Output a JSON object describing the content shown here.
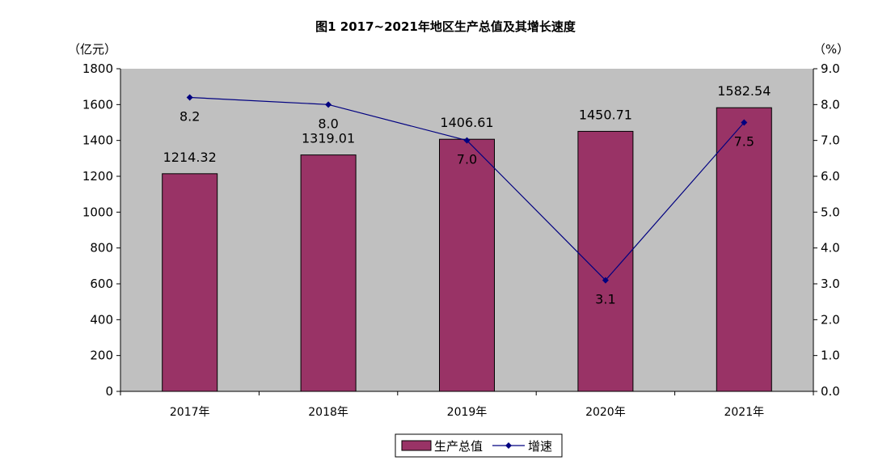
{
  "chart_data": {
    "type": "bar",
    "title": "图1  2017~2021年地区生产总值及其增长速度",
    "categories": [
      "2017年",
      "2018年",
      "2019年",
      "2020年",
      "2021年"
    ],
    "series": [
      {
        "name": "生产总值",
        "type": "bar",
        "axis": "left",
        "values": [
          1214.32,
          1319.01,
          1406.61,
          1450.71,
          1582.54
        ],
        "labels": [
          "1214.32",
          "1319.01",
          "1406.61",
          "1450.71",
          "1582.54"
        ]
      },
      {
        "name": "增速",
        "type": "line",
        "axis": "right",
        "values": [
          8.2,
          8.0,
          7.0,
          3.1,
          7.5
        ],
        "labels": [
          "8.2",
          "8.0",
          "7.0",
          "3.1",
          "7.5"
        ]
      }
    ],
    "y_left": {
      "unit": "（亿元）",
      "ylim": [
        0,
        1800
      ],
      "ticks": [
        "0",
        "200",
        "400",
        "600",
        "800",
        "1000",
        "1200",
        "1400",
        "1600",
        "1800"
      ]
    },
    "y_right": {
      "unit": "（%）",
      "ylim": [
        0,
        9
      ],
      "ticks": [
        "0.0",
        "1.0",
        "2.0",
        "3.0",
        "4.0",
        "5.0",
        "6.0",
        "7.0",
        "8.0",
        "9.0"
      ]
    },
    "grid": false,
    "legend": "bottom",
    "colors": {
      "bar": "#993366",
      "line": "#000080",
      "plot_background": "#c0c0c0"
    }
  }
}
